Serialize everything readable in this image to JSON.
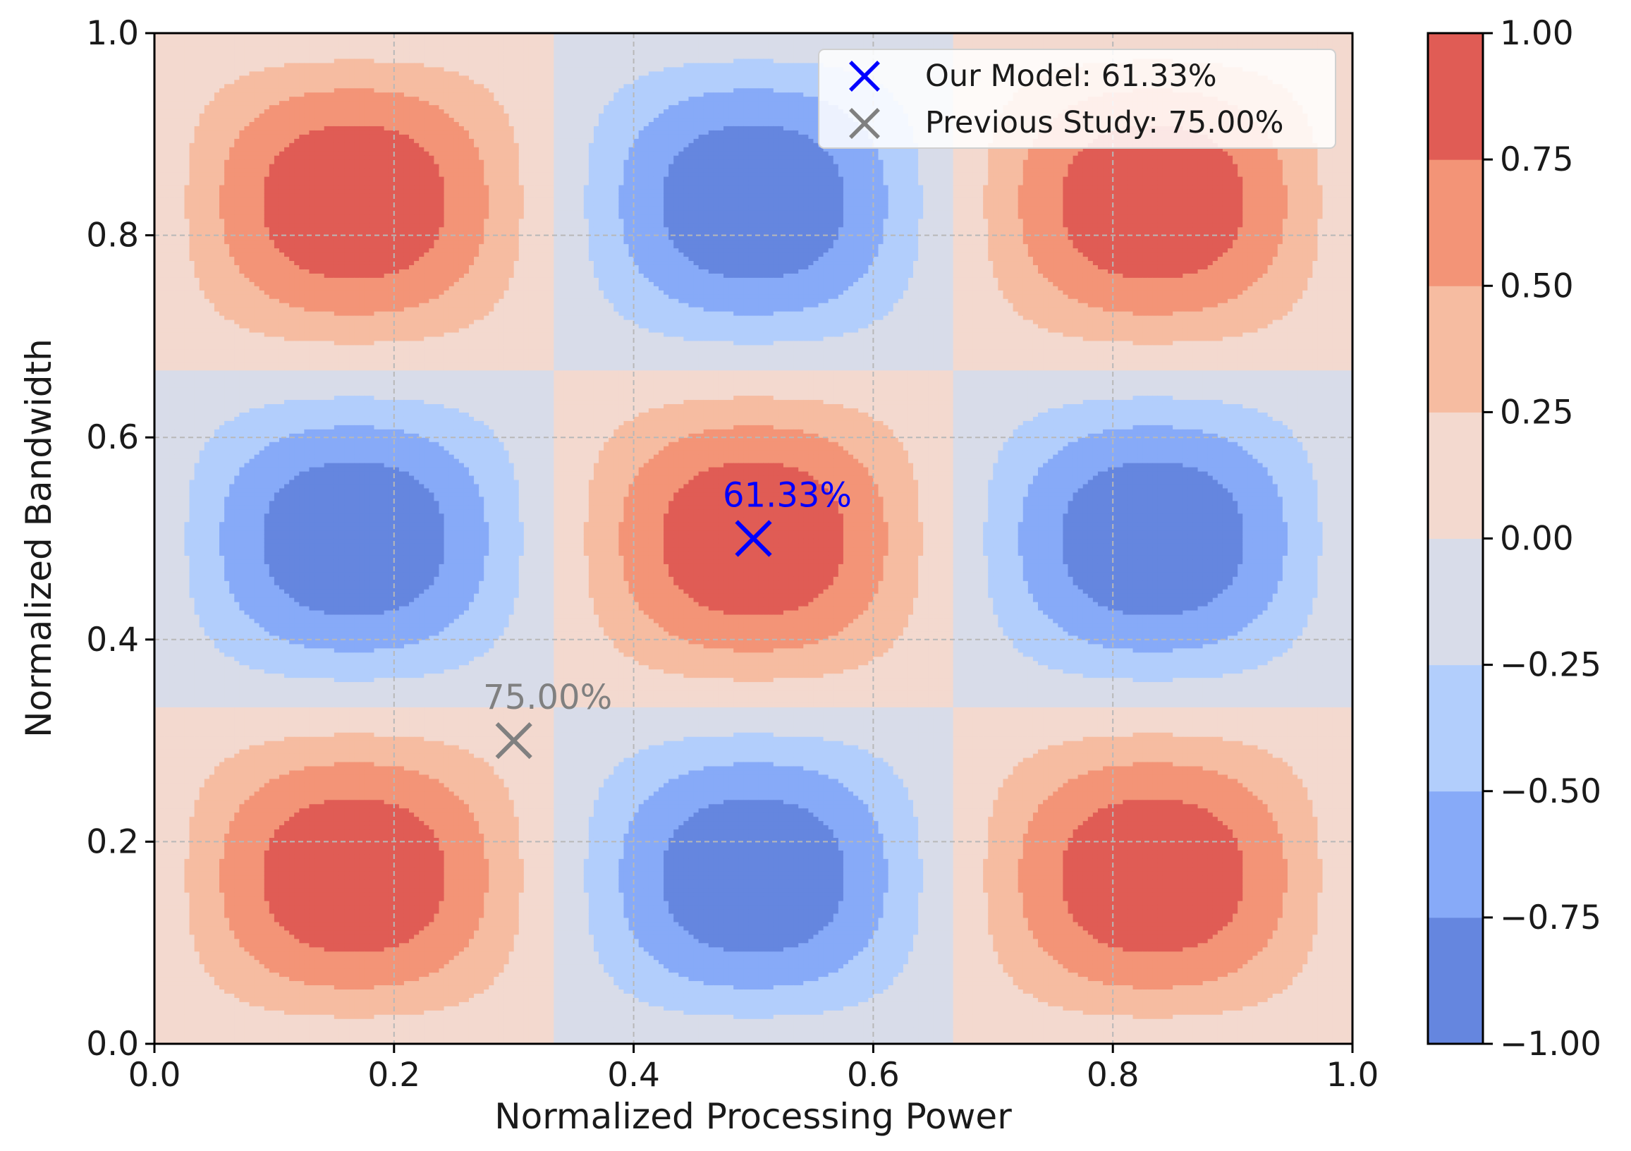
{
  "chart_data": {
    "type": "heatmap",
    "subtype": "filled-contour",
    "function": "sin(3*pi*x) * sin(3*pi*y)",
    "title": "",
    "xlabel": "Normalized Processing Power",
    "ylabel": "Normalized Bandwidth",
    "xlim": [
      0.0,
      1.0
    ],
    "ylim": [
      0.0,
      1.0
    ],
    "x_ticks": [
      0.0,
      0.2,
      0.4,
      0.6,
      0.8,
      1.0
    ],
    "x_tick_labels": [
      "0.0",
      "0.2",
      "0.4",
      "0.6",
      "0.8",
      "1.0"
    ],
    "y_ticks": [
      0.0,
      0.2,
      0.4,
      0.6,
      0.8,
      1.0
    ],
    "y_tick_labels": [
      "0.0",
      "0.2",
      "0.4",
      "0.6",
      "0.8",
      "1.0"
    ],
    "grid": true,
    "contour_levels": [
      -1.0,
      -0.75,
      -0.5,
      -0.25,
      0.0,
      0.25,
      0.5,
      0.75,
      1.0
    ],
    "level_colors": [
      "#6586df",
      "#87aaf8",
      "#b2cefc",
      "#d8dce9",
      "#f3d9cf",
      "#f6bca1",
      "#f39477",
      "#e05c55"
    ],
    "colorbar": {
      "ticks": [
        1.0,
        0.75,
        0.5,
        0.25,
        0.0,
        -0.25,
        -0.5,
        -0.75,
        -1.0
      ],
      "tick_labels": [
        "1.00",
        "0.75",
        "0.50",
        "0.25",
        "0.00",
        "−0.25",
        "−0.50",
        "−0.75",
        "−1.00"
      ]
    },
    "markers": [
      {
        "name": "Our Model",
        "x": 0.5,
        "y": 0.5,
        "label": "61.33%",
        "color": "#0000ff",
        "marker": "x"
      },
      {
        "name": "Previous Study",
        "x": 0.3,
        "y": 0.3,
        "label": "75.00%",
        "color": "#808080",
        "marker": "x"
      }
    ],
    "legend": {
      "location": "top-right",
      "entries": [
        {
          "label": "Our Model: 61.33%",
          "color": "#0000ff"
        },
        {
          "label": "Previous Study: 75.00%",
          "color": "#808080"
        }
      ]
    }
  }
}
